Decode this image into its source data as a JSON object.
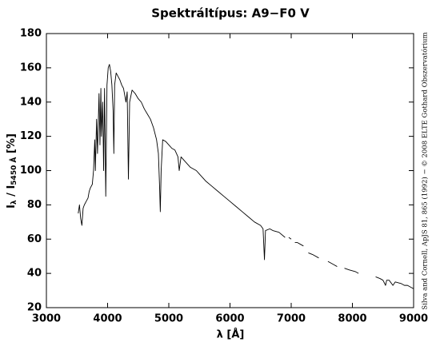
{
  "chart_data": {
    "type": "line",
    "title": "Spektráltípus: A9−F0 V",
    "xlabel": "λ [Å]",
    "ylabel_parts": [
      "I",
      "λ",
      " / I",
      "5450 Å",
      " [%]"
    ],
    "annotation": "Silva and Cornell, ApJS 81, 865 (1992) − © 2008 ELTE Gothard Obszervatórium",
    "xlim": [
      3000,
      9000
    ],
    "xticks": [
      3000,
      4000,
      5000,
      6000,
      7000,
      8000,
      9000
    ],
    "ylim": [
      20,
      180
    ],
    "yticks": [
      20,
      40,
      60,
      80,
      100,
      120,
      140,
      160,
      180
    ],
    "grid": false,
    "series": [
      {
        "color": "#000000",
        "x": [
          3520,
          3540,
          3560,
          3580,
          3600,
          3620,
          3650,
          3680,
          3700,
          3720,
          3750,
          3770,
          3790,
          3800,
          3820,
          3835,
          3860,
          3875,
          3890,
          3900,
          3920,
          3935,
          3950,
          3970,
          3990,
          4010,
          4030,
          4050,
          4070,
          4090,
          4102,
          4115,
          4140,
          4170,
          4200,
          4230,
          4260,
          4300,
          4320,
          4340,
          4360,
          4400,
          4450,
          4500,
          4550,
          4600,
          4650,
          4700,
          4750,
          4800,
          4830,
          4850,
          4861,
          4875,
          4900,
          4950,
          5000,
          5050,
          5100,
          5150,
          5170,
          5200,
          5250,
          5300,
          5350,
          5400,
          5450,
          5500,
          5600,
          5700,
          5800,
          5900,
          6000,
          6100,
          6200,
          6300,
          6400,
          6500,
          6540,
          6563,
          6580,
          6650,
          6700,
          6800,
          6900,
          6925,
          6960,
          7000,
          7025,
          7060,
          7100,
          7150,
          7200,
          7225,
          7280,
          7350,
          7450,
          7500,
          7600,
          7700,
          7750,
          7800,
          7870,
          7950,
          8050,
          8100,
          8250,
          8380,
          8450,
          8500,
          8542,
          8560,
          8600,
          8662,
          8700,
          8800,
          8850,
          8900,
          8950,
          9000
        ],
        "values": [
          75,
          80,
          72,
          68,
          78,
          80,
          82,
          84,
          88,
          90,
          92,
          100,
          118,
          100,
          130,
          110,
          145,
          115,
          148,
          120,
          140,
          100,
          148,
          85,
          150,
          160,
          162,
          158,
          150,
          135,
          110,
          150,
          157,
          155,
          153,
          150,
          148,
          140,
          146,
          95,
          140,
          147,
          145,
          142,
          140,
          136,
          133,
          130,
          125,
          118,
          110,
          90,
          76,
          100,
          118,
          117,
          115,
          113,
          112,
          108,
          100,
          108,
          106,
          104,
          102,
          101,
          100,
          98,
          94,
          91,
          88,
          85,
          82,
          79,
          76,
          73,
          70,
          68,
          66,
          48,
          65,
          66,
          65,
          64,
          61,
          null,
          61,
          60,
          null,
          58,
          58,
          57,
          56,
          null,
          52,
          51,
          49,
          null,
          47,
          45,
          44,
          null,
          43,
          42,
          41,
          40,
          null,
          38,
          37,
          36,
          33,
          36,
          36,
          33,
          35,
          34,
          33,
          33,
          32,
          31
        ]
      }
    ]
  }
}
